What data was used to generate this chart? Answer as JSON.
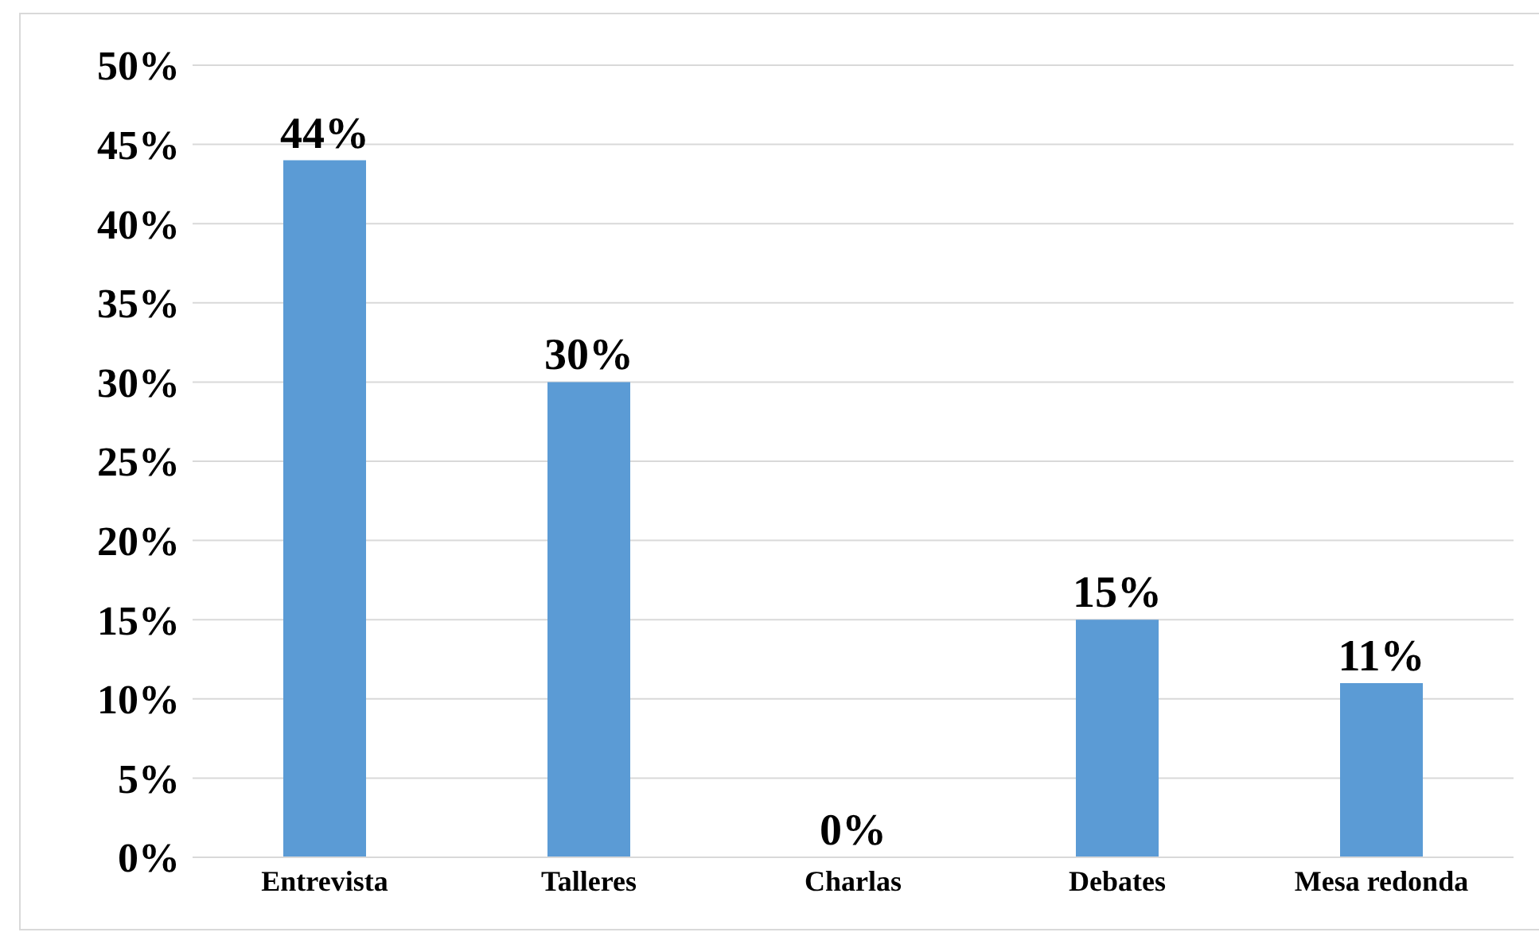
{
  "chart_data": {
    "type": "bar",
    "categories": [
      "Entrevista",
      "Talleres",
      "Charlas",
      "Debates",
      "Mesa redonda"
    ],
    "values": [
      44,
      30,
      0,
      15,
      11
    ],
    "value_labels": [
      "44%",
      "30%",
      "0%",
      "15%",
      "11%"
    ],
    "color": "#5b9bd5",
    "ylim": [
      0,
      50
    ],
    "yticks": [
      {
        "value": 0,
        "label": "0%"
      },
      {
        "value": 5,
        "label": "5%"
      },
      {
        "value": 10,
        "label": "10%"
      },
      {
        "value": 15,
        "label": "15%"
      },
      {
        "value": 20,
        "label": "20%"
      },
      {
        "value": 25,
        "label": "25%"
      },
      {
        "value": 30,
        "label": "30%"
      },
      {
        "value": 35,
        "label": "35%"
      },
      {
        "value": 40,
        "label": "40%"
      },
      {
        "value": 45,
        "label": "45%"
      },
      {
        "value": 50,
        "label": "50%"
      }
    ],
    "grid": "y"
  }
}
